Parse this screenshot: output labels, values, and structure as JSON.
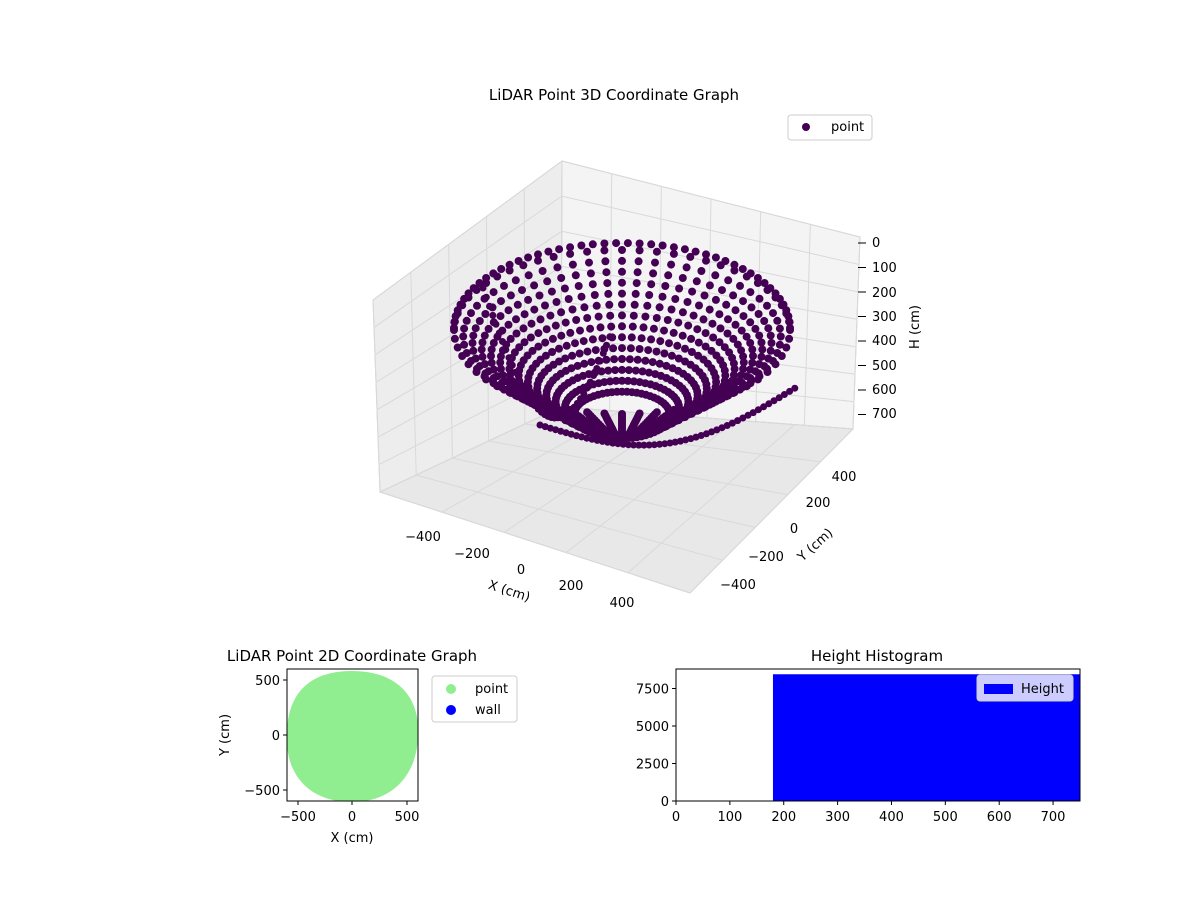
{
  "colors": {
    "point3d": "#440154",
    "point3d_light": "#4b0e60",
    "point2d": "#90ee90",
    "wall": "#0000ff",
    "hist": "#0000ff",
    "pane": "#f2f2f2",
    "grid": "#d9d9d9"
  },
  "chart_data": [
    {
      "type": "scatter",
      "projection": "3d",
      "title": "LiDAR Point 3D Coordinate Graph",
      "xlabel": "X (cm)",
      "ylabel": "Y (cm)",
      "zlabel": "H (cm)",
      "xticks": [
        "−400",
        "−200",
        "0",
        "200",
        "400"
      ],
      "yticks": [
        "−400",
        "−200",
        "0",
        "200",
        "400"
      ],
      "zticks": [
        "0",
        "100",
        "200",
        "300",
        "400",
        "500",
        "600",
        "700"
      ],
      "zaxis_inverted": true,
      "legend": {
        "position": "top-right",
        "entries": [
          "point"
        ]
      },
      "series": [
        {
          "name": "point",
          "color": "#440154",
          "description_shape": "bowl of points, radius ~350 cm at top, height 0-750 cm"
        }
      ],
      "grid": true
    },
    {
      "type": "scatter",
      "title": "LiDAR Point 2D Coordinate Graph",
      "xlabel": "X (cm)",
      "ylabel": "Y (cm)",
      "xlim": [
        -600,
        600
      ],
      "ylim": [
        -600,
        600
      ],
      "xticks": [
        "−500",
        "0",
        "500"
      ],
      "yticks": [
        "500",
        "0",
        "−500"
      ],
      "legend": {
        "position": "outside-right",
        "entries": [
          "point",
          "wall"
        ]
      },
      "series": [
        {
          "name": "point",
          "color": "#90ee90",
          "approx_region": "filled disc, radius ~580 cm centered near origin"
        },
        {
          "name": "wall",
          "color": "#0000ff",
          "points": []
        }
      ],
      "grid": false
    },
    {
      "type": "bar",
      "title": "Height Histogram",
      "xlim": [
        0,
        750
      ],
      "ylim": [
        0,
        8800
      ],
      "xticks": [
        "0",
        "100",
        "200",
        "300",
        "400",
        "500",
        "600",
        "700"
      ],
      "yticks": [
        "0",
        "2500",
        "5000",
        "7500"
      ],
      "legend": {
        "position": "top-right",
        "entries": [
          "Height"
        ]
      },
      "series": [
        {
          "name": "Height",
          "color": "#0000ff",
          "bins": [
            {
              "from": 180,
              "to": 750,
              "count": 8450
            }
          ]
        }
      ],
      "grid": false
    }
  ]
}
